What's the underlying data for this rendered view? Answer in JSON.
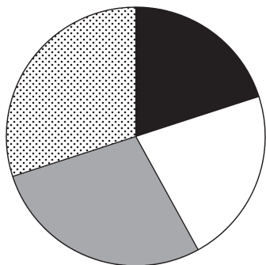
{
  "chart_data": {
    "type": "pie",
    "title": "",
    "start_angle_deg": 0,
    "direction": "clockwise",
    "slices": [
      {
        "label": "",
        "value": 20,
        "pattern": "solid",
        "color": "#231f20"
      },
      {
        "label": "",
        "value": 22,
        "pattern": "solid",
        "color": "#ffffff"
      },
      {
        "label": "",
        "value": 28,
        "pattern": "solid",
        "color": "#a7a9ac"
      },
      {
        "label": "",
        "value": 30,
        "pattern": "dots",
        "color": "#ffffff",
        "dot_color": "#231f20"
      }
    ],
    "stroke_color": "#231f20",
    "legend": "none",
    "grid": false
  }
}
